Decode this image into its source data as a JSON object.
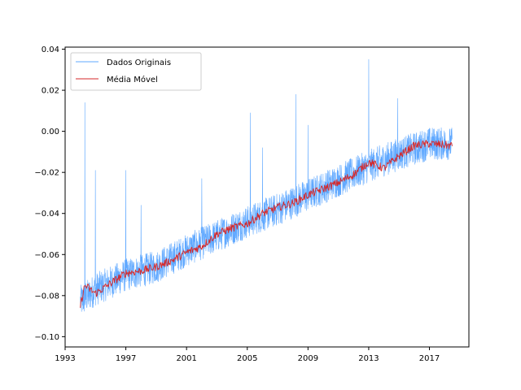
{
  "chart_data": {
    "type": "line",
    "title": "",
    "xlabel": "",
    "ylabel": "",
    "xlim": [
      1993.0,
      2019.6
    ],
    "ylim": [
      -0.105,
      0.041
    ],
    "x_ticks": [
      "1993",
      "1997",
      "2001",
      "2005",
      "2009",
      "2013",
      "2017"
    ],
    "y_ticks": [
      "−0.10",
      "−0.08",
      "−0.06",
      "−0.04",
      "−0.02",
      "0.00",
      "0.02",
      "0.04"
    ],
    "x_tick_values": [
      1993,
      1997,
      2001,
      2005,
      2009,
      2013,
      2017
    ],
    "y_tick_values": [
      -0.1,
      -0.08,
      -0.06,
      -0.04,
      -0.02,
      0.0,
      0.02,
      0.04
    ],
    "grid": false,
    "legend_position": "top-left",
    "series": [
      {
        "name": "Dados Originais",
        "color": "#5fa8ff",
        "role": "raw",
        "x_range": [
          1994.0,
          2018.5
        ],
        "trend_points": [
          [
            1994.0,
            -0.083
          ],
          [
            1995.0,
            -0.077
          ],
          [
            1997.0,
            -0.07
          ],
          [
            1999.0,
            -0.066
          ],
          [
            2001.0,
            -0.058
          ],
          [
            2003.0,
            -0.051
          ],
          [
            2005.0,
            -0.044
          ],
          [
            2007.0,
            -0.038
          ],
          [
            2009.0,
            -0.031
          ],
          [
            2011.0,
            -0.024
          ],
          [
            2013.0,
            -0.017
          ],
          [
            2015.0,
            -0.011
          ],
          [
            2017.0,
            -0.006
          ],
          [
            2018.5,
            -0.006
          ]
        ],
        "noise_amplitude": 0.008,
        "spikes": [
          [
            1994.3,
            0.014
          ],
          [
            1995.0,
            -0.019
          ],
          [
            1997.0,
            -0.019
          ],
          [
            1998.0,
            -0.036
          ],
          [
            2002.0,
            -0.023
          ],
          [
            2005.2,
            0.009
          ],
          [
            2006.0,
            -0.008
          ],
          [
            2008.2,
            0.018
          ],
          [
            2009.0,
            0.003
          ],
          [
            2013.0,
            0.035
          ],
          [
            2014.9,
            0.016
          ]
        ]
      },
      {
        "name": "Média Móvel",
        "color": "#d62728",
        "role": "moving_average",
        "x_range": [
          1994.0,
          2018.5
        ],
        "trend_points": [
          [
            1994.0,
            -0.085
          ],
          [
            1994.3,
            -0.075
          ],
          [
            1995.0,
            -0.079
          ],
          [
            1996.0,
            -0.074
          ],
          [
            1997.0,
            -0.069
          ],
          [
            1998.0,
            -0.068
          ],
          [
            1999.0,
            -0.066
          ],
          [
            2000.0,
            -0.063
          ],
          [
            2001.0,
            -0.059
          ],
          [
            2002.0,
            -0.056
          ],
          [
            2003.0,
            -0.05
          ],
          [
            2004.0,
            -0.047
          ],
          [
            2005.0,
            -0.045
          ],
          [
            2006.0,
            -0.04
          ],
          [
            2007.0,
            -0.037
          ],
          [
            2008.0,
            -0.035
          ],
          [
            2009.0,
            -0.031
          ],
          [
            2010.0,
            -0.028
          ],
          [
            2011.0,
            -0.025
          ],
          [
            2012.0,
            -0.021
          ],
          [
            2013.0,
            -0.015
          ],
          [
            2014.0,
            -0.018
          ],
          [
            2015.0,
            -0.012
          ],
          [
            2016.0,
            -0.007
          ],
          [
            2017.0,
            -0.006
          ],
          [
            2018.5,
            -0.007
          ]
        ]
      }
    ]
  }
}
